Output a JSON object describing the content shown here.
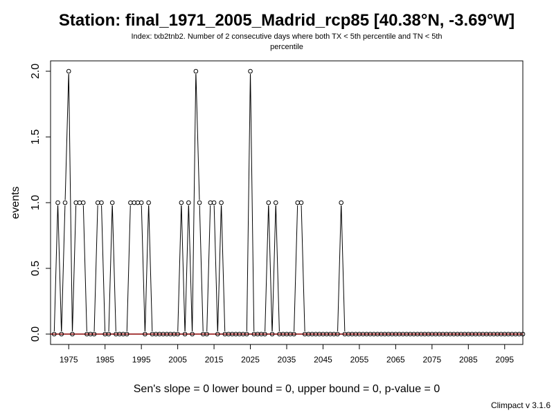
{
  "chart_data": {
    "type": "line",
    "title": "Station: final_1971_2005_Madrid_rcp85 [40.38°N, -3.69°W]",
    "subtitle_lines": [
      "Index: txb2tnb2. Number of 2 consecutive days where both TX < 5th percentile and TN < 5th",
      "percentile"
    ],
    "xlabel": "",
    "ylabel": "events",
    "xlim": [
      1970,
      2100
    ],
    "ylim": [
      0,
      2
    ],
    "x_ticks": [
      1975,
      1985,
      1995,
      2005,
      2015,
      2025,
      2035,
      2045,
      2055,
      2065,
      2075,
      2085,
      2095
    ],
    "y_ticks": [
      "0.0",
      "0.5",
      "1.0",
      "1.5",
      "2.0"
    ],
    "x": [
      1971,
      1972,
      1973,
      1974,
      1975,
      1976,
      1977,
      1978,
      1979,
      1980,
      1981,
      1982,
      1983,
      1984,
      1985,
      1986,
      1987,
      1988,
      1989,
      1990,
      1991,
      1992,
      1993,
      1994,
      1995,
      1996,
      1997,
      1998,
      1999,
      2000,
      2001,
      2002,
      2003,
      2004,
      2005,
      2006,
      2007,
      2008,
      2009,
      2010,
      2011,
      2012,
      2013,
      2014,
      2015,
      2016,
      2017,
      2018,
      2019,
      2020,
      2021,
      2022,
      2023,
      2024,
      2025,
      2026,
      2027,
      2028,
      2029,
      2030,
      2031,
      2032,
      2033,
      2034,
      2035,
      2036,
      2037,
      2038,
      2039,
      2040,
      2041,
      2042,
      2043,
      2044,
      2045,
      2046,
      2047,
      2048,
      2049,
      2050,
      2051,
      2052,
      2053,
      2054,
      2055,
      2056,
      2057,
      2058,
      2059,
      2060,
      2061,
      2062,
      2063,
      2064,
      2065,
      2066,
      2067,
      2068,
      2069,
      2070,
      2071,
      2072,
      2073,
      2074,
      2075,
      2076,
      2077,
      2078,
      2079,
      2080,
      2081,
      2082,
      2083,
      2084,
      2085,
      2086,
      2087,
      2088,
      2089,
      2090,
      2091,
      2092,
      2093,
      2094,
      2095,
      2096,
      2097,
      2098,
      2099,
      2100
    ],
    "values": [
      0,
      1,
      0,
      1,
      2,
      0,
      1,
      1,
      1,
      0,
      0,
      0,
      1,
      1,
      0,
      0,
      1,
      0,
      0,
      0,
      0,
      1,
      1,
      1,
      1,
      0,
      1,
      0,
      0,
      0,
      0,
      0,
      0,
      0,
      0,
      1,
      0,
      1,
      0,
      2,
      1,
      0,
      0,
      1,
      1,
      0,
      1,
      0,
      0,
      0,
      0,
      0,
      0,
      0,
      2,
      0,
      0,
      0,
      0,
      1,
      0,
      1,
      0,
      0,
      0,
      0,
      0,
      1,
      1,
      0,
      0,
      0,
      0,
      0,
      0,
      0,
      0,
      0,
      0,
      1,
      0,
      0,
      0,
      0,
      0,
      0,
      0,
      0,
      0,
      0,
      0,
      0,
      0,
      0,
      0,
      0,
      0,
      0,
      0,
      0,
      0,
      0,
      0,
      0,
      0,
      0,
      0,
      0,
      0,
      0,
      0,
      0,
      0,
      0,
      0,
      0,
      0,
      0,
      0,
      0,
      0,
      0,
      0,
      0,
      0,
      0,
      0,
      0,
      0,
      0
    ],
    "trend_line": {
      "value": 0,
      "color": "#8b0000"
    },
    "line_color": "#000000",
    "grid": false,
    "footer": "Sen's slope = 0   lower bound = 0,   upper bound = 0,   p-value = 0",
    "version": "Climpact v 3.1.6"
  }
}
